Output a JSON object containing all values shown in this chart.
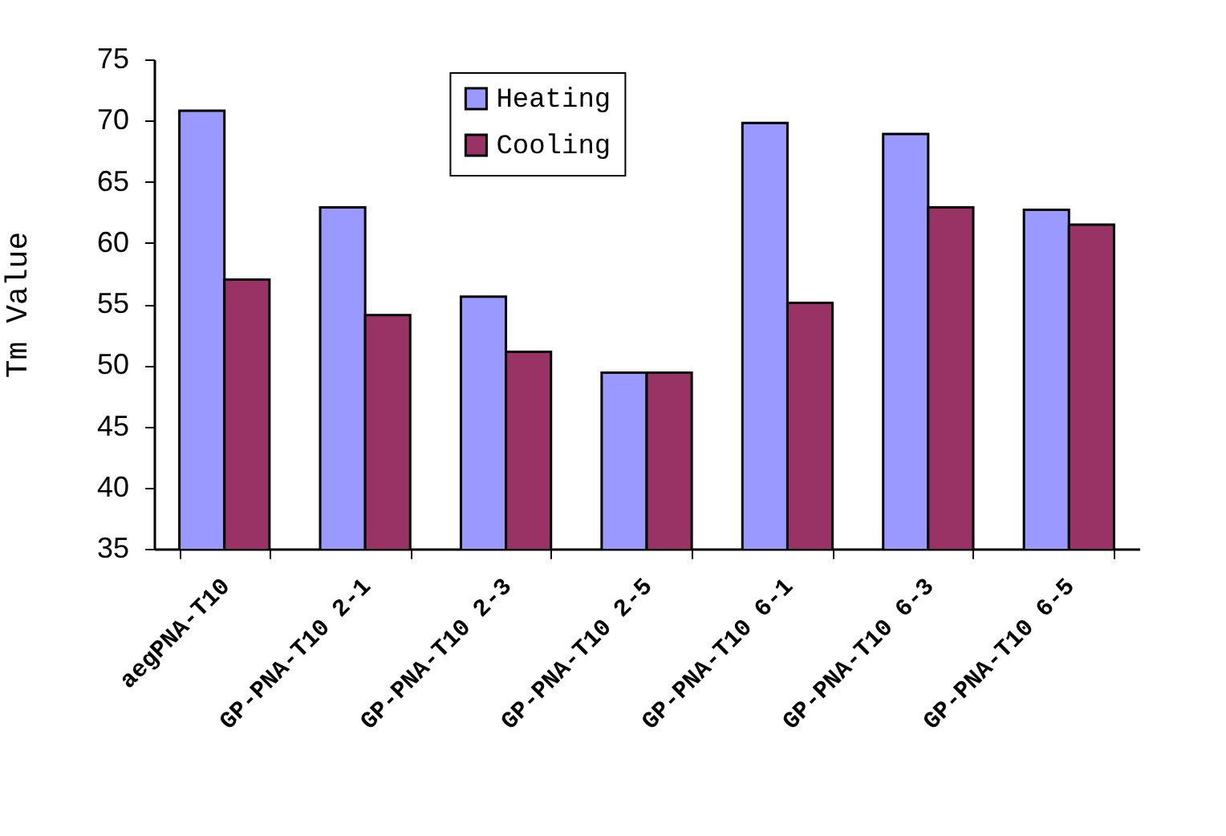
{
  "chart_data": {
    "type": "bar",
    "ylabel": "Tm Value",
    "categories": [
      "aegPNA-T10",
      "GP-PNA-T10 2-1",
      "GP-PNA-T10 2-3",
      "GP-PNA-T10 2-5",
      "GP-PNA-T10 6-1",
      "GP-PNA-T10 6-3",
      "GP-PNA-T10 6-5"
    ],
    "series": [
      {
        "name": "Heating",
        "color": "#9999ff",
        "values": [
          70.8,
          62.9,
          55.6,
          49.4,
          69.8,
          68.9,
          62.7
        ]
      },
      {
        "name": "Cooling",
        "color": "#993366",
        "values": [
          57.0,
          54.1,
          51.1,
          49.4,
          55.1,
          62.9,
          61.5
        ]
      }
    ],
    "ylim": [
      35,
      75
    ],
    "yticks": [
      35,
      40,
      45,
      50,
      55,
      60,
      65,
      70,
      75
    ],
    "grid": false,
    "legend": "top"
  }
}
